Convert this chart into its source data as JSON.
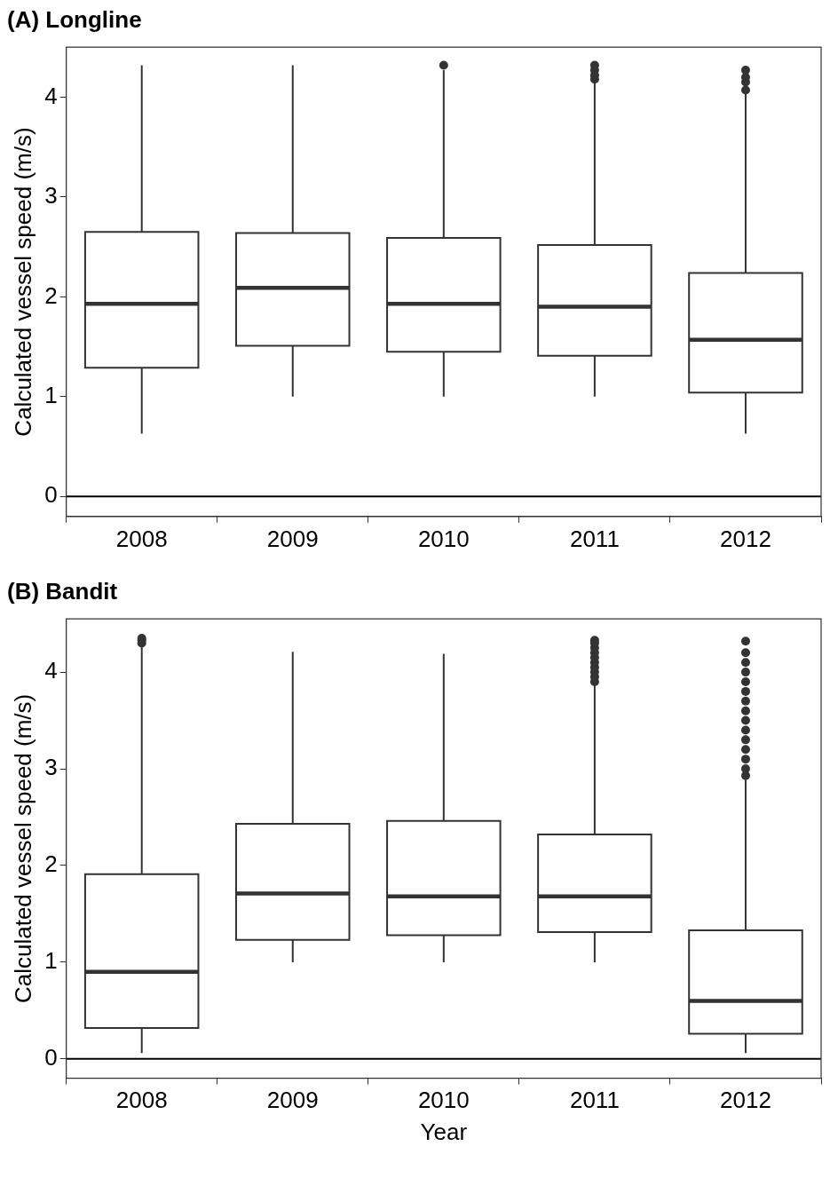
{
  "chart_data": [
    {
      "type": "box",
      "title": "(A) Longline",
      "ylabel": "Calculated vessel speed (m/s)",
      "categories": [
        "2008",
        "2009",
        "2010",
        "2011",
        "2012"
      ],
      "color": "#333333",
      "boxes": [
        {
          "low": 0.63,
          "q1": 1.29,
          "median": 1.93,
          "q3": 2.65,
          "high": 4.32
        },
        {
          "low": 1.0,
          "q1": 1.51,
          "median": 2.09,
          "q3": 2.64,
          "high": 4.32
        },
        {
          "low": 1.0,
          "q1": 1.45,
          "median": 1.93,
          "q3": 2.59,
          "high": 4.27,
          "outliers": [
            4.32
          ]
        },
        {
          "low": 1.0,
          "q1": 1.41,
          "median": 1.9,
          "q3": 2.52,
          "high": 4.15,
          "outliers": [
            4.18,
            4.22,
            4.27,
            4.32
          ]
        },
        {
          "low": 0.63,
          "q1": 1.04,
          "median": 1.57,
          "q3": 2.24,
          "high": 4.05,
          "outliers": [
            4.07,
            4.15,
            4.2,
            4.27
          ]
        }
      ],
      "ylim": [
        -0.2,
        4.5
      ],
      "yticks": [
        0,
        1,
        2,
        3,
        4
      ],
      "ref_lines": [
        {
          "axis": "y",
          "value": 0,
          "color": "#000000"
        }
      ]
    },
    {
      "type": "box",
      "title": "(B) Bandit",
      "xlabel": "Year",
      "ylabel": "Calculated vessel speed (m/s)",
      "categories": [
        "2008",
        "2009",
        "2010",
        "2011",
        "2012"
      ],
      "color": "#333333",
      "boxes": [
        {
          "low": 0.06,
          "q1": 0.32,
          "median": 0.9,
          "q3": 1.91,
          "high": 4.28,
          "outliers": [
            4.3,
            4.33,
            4.35
          ]
        },
        {
          "low": 1.0,
          "q1": 1.23,
          "median": 1.71,
          "q3": 2.43,
          "high": 4.21
        },
        {
          "low": 1.0,
          "q1": 1.28,
          "median": 1.68,
          "q3": 2.46,
          "high": 4.19
        },
        {
          "low": 1.0,
          "q1": 1.31,
          "median": 1.68,
          "q3": 2.32,
          "high": 3.88,
          "outliers": [
            3.9,
            3.95,
            4.0,
            4.05,
            4.1,
            4.15,
            4.2,
            4.25,
            4.3,
            4.33
          ]
        },
        {
          "low": 0.06,
          "q1": 0.26,
          "median": 0.6,
          "q3": 1.33,
          "high": 2.9,
          "outliers": [
            2.93,
            3.0,
            3.1,
            3.2,
            3.3,
            3.4,
            3.5,
            3.6,
            3.7,
            3.8,
            3.9,
            4.0,
            4.1,
            4.2,
            4.32
          ]
        }
      ],
      "ylim": [
        -0.2,
        4.55
      ],
      "yticks": [
        0,
        1,
        2,
        3,
        4
      ],
      "ref_lines": [
        {
          "axis": "y",
          "value": 0,
          "color": "#000000"
        }
      ]
    }
  ]
}
